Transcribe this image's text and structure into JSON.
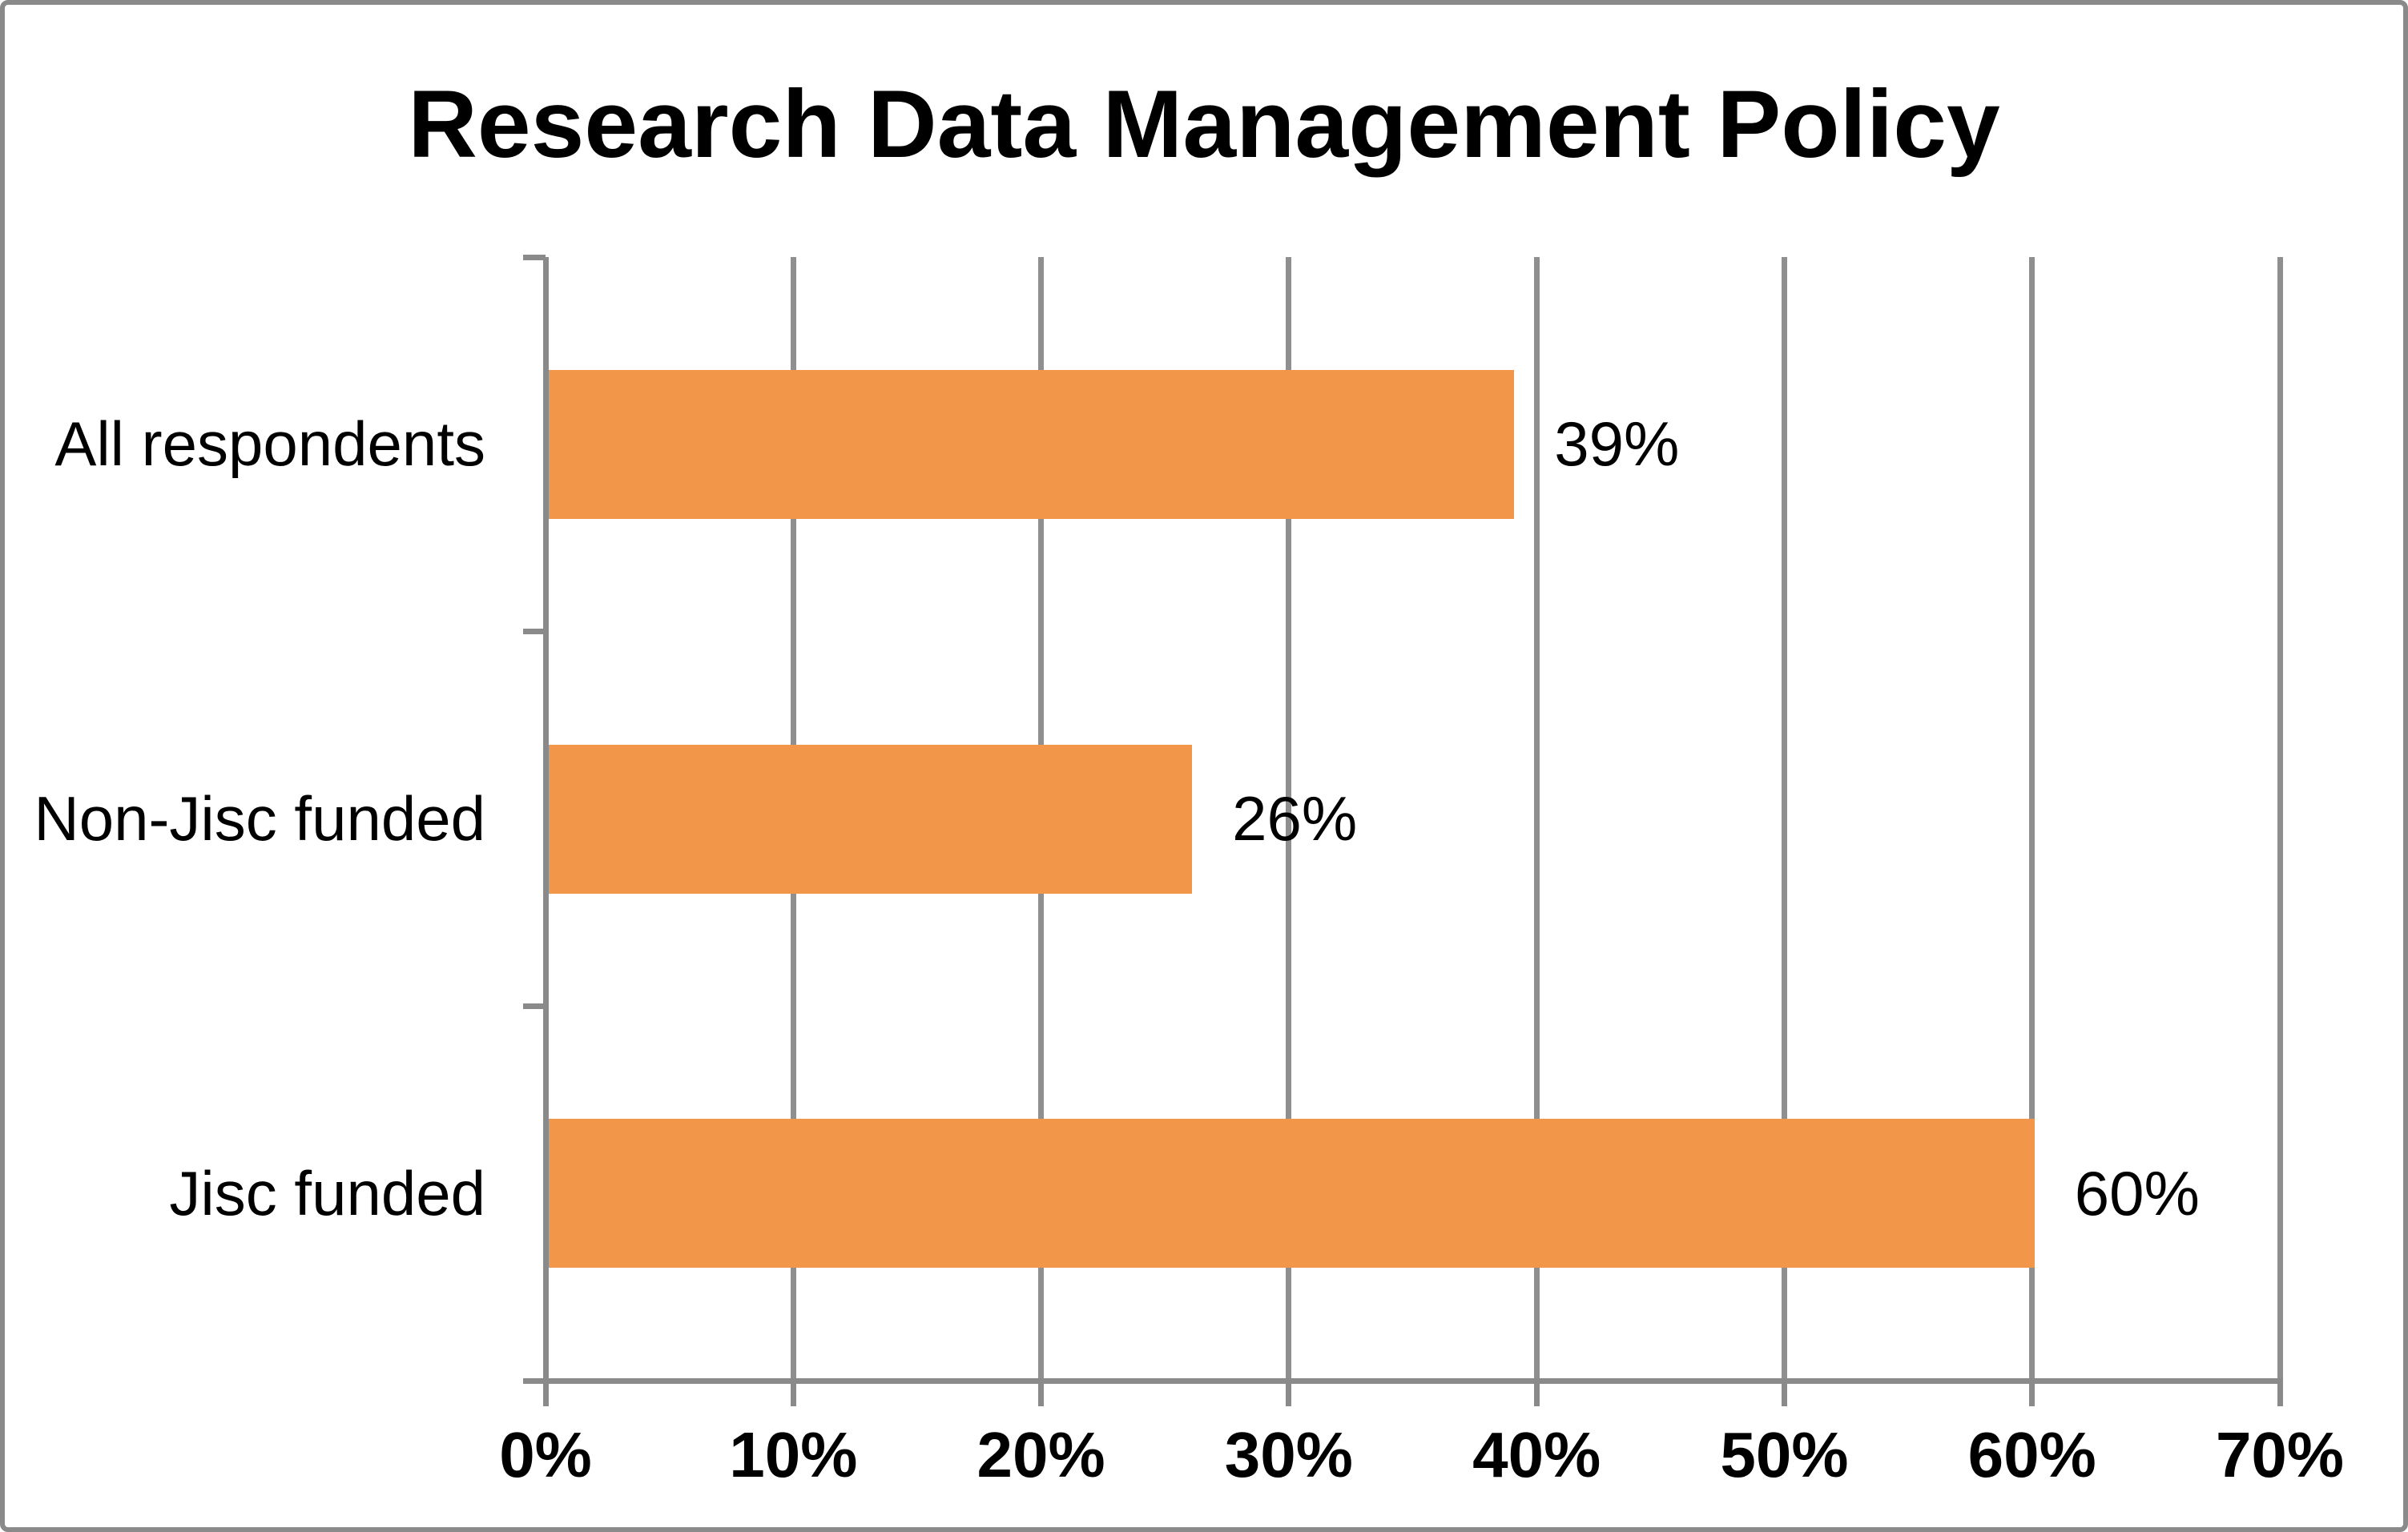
{
  "chart_data": {
    "type": "bar",
    "orientation": "horizontal",
    "title": "Research Data Management Policy",
    "categories": [
      "All respondents",
      "Non-Jisc funded",
      "Jisc funded"
    ],
    "values": [
      39,
      26,
      60
    ],
    "value_labels": [
      "39%",
      "26%",
      "60%"
    ],
    "x_tick_labels": [
      "0%",
      "10%",
      "20%",
      "30%",
      "40%",
      "50%",
      "60%",
      "70%"
    ],
    "xlim": [
      0,
      70
    ],
    "x_tick_step": 10,
    "grid": "vertical-major-only",
    "legend": "none",
    "xlabel": "",
    "ylabel": "",
    "colors": {
      "bar": "#F2964A",
      "gridline": "#8F8F8F",
      "axis": "#8A8A8A",
      "text": "#000000",
      "background": "#FFFFFF",
      "frame_border": "#8A8A8A"
    }
  }
}
